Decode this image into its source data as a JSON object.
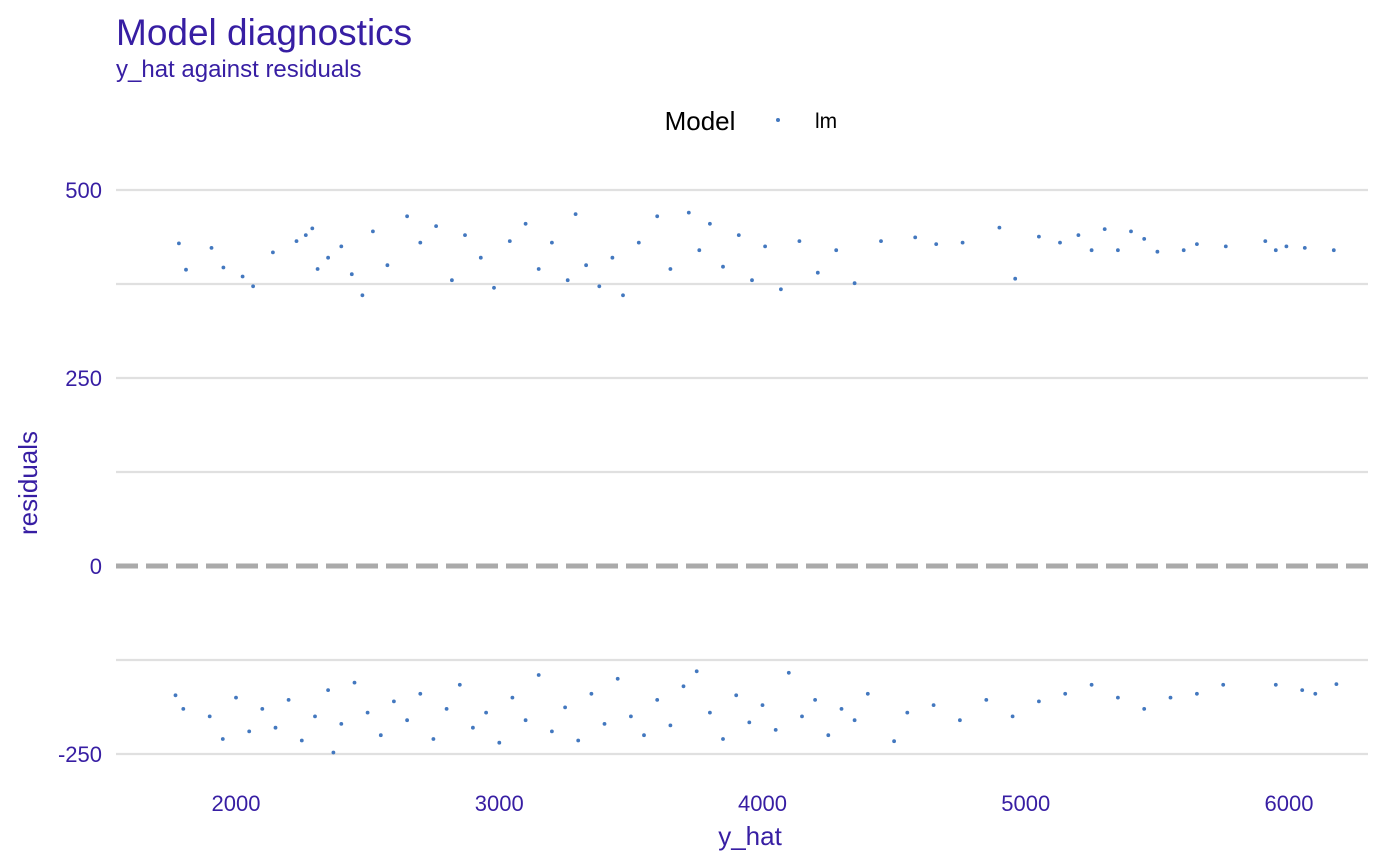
{
  "chart_data": {
    "type": "scatter",
    "title": "Model diagnostics",
    "subtitle": "y_hat against residuals",
    "xlabel": "y_hat",
    "ylabel": "residuals",
    "xlim": [
      1600,
      6350
    ],
    "ylim": [
      -270,
      530
    ],
    "x_ticks": [
      2000,
      3000,
      4000,
      5000,
      6000
    ],
    "y_ticks": [
      -250,
      0,
      250,
      500
    ],
    "y_minor_grid": [
      -125,
      125,
      375
    ],
    "grid": true,
    "legend": {
      "title": "Model",
      "position": "top",
      "entries": [
        {
          "label": "lm",
          "color": "#4378bf"
        }
      ]
    },
    "reference_line": {
      "y": 0,
      "style": "dashed",
      "color": "#aaaaaa"
    },
    "series": [
      {
        "name": "lm",
        "color": "#4378bf",
        "points": [
          [
            1783,
            429
          ],
          [
            1810,
            394
          ],
          [
            1907,
            423
          ],
          [
            1952,
            397
          ],
          [
            2025,
            385
          ],
          [
            2065,
            372
          ],
          [
            2140,
            417
          ],
          [
            2230,
            432
          ],
          [
            2265,
            440
          ],
          [
            2290,
            449
          ],
          [
            2310,
            395
          ],
          [
            2350,
            410
          ],
          [
            2400,
            425
          ],
          [
            2440,
            388
          ],
          [
            2480,
            360
          ],
          [
            2520,
            445
          ],
          [
            2575,
            400
          ],
          [
            2650,
            465
          ],
          [
            2700,
            430
          ],
          [
            2760,
            452
          ],
          [
            2820,
            380
          ],
          [
            2870,
            440
          ],
          [
            2930,
            410
          ],
          [
            2980,
            370
          ],
          [
            3040,
            432
          ],
          [
            3100,
            455
          ],
          [
            3150,
            395
          ],
          [
            3200,
            430
          ],
          [
            3260,
            380
          ],
          [
            3290,
            468
          ],
          [
            3330,
            400
          ],
          [
            3380,
            372
          ],
          [
            3430,
            410
          ],
          [
            3470,
            360
          ],
          [
            3530,
            430
          ],
          [
            3600,
            465
          ],
          [
            3650,
            395
          ],
          [
            3720,
            470
          ],
          [
            3760,
            420
          ],
          [
            3800,
            455
          ],
          [
            3850,
            398
          ],
          [
            3910,
            440
          ],
          [
            3960,
            380
          ],
          [
            4010,
            425
          ],
          [
            4070,
            368
          ],
          [
            4140,
            432
          ],
          [
            4210,
            390
          ],
          [
            4280,
            420
          ],
          [
            4350,
            376
          ],
          [
            4450,
            432
          ],
          [
            4580,
            437
          ],
          [
            4660,
            428
          ],
          [
            4760,
            430
          ],
          [
            4900,
            450
          ],
          [
            4960,
            382
          ],
          [
            5050,
            438
          ],
          [
            5130,
            430
          ],
          [
            5200,
            440
          ],
          [
            5250,
            420
          ],
          [
            5300,
            448
          ],
          [
            5350,
            420
          ],
          [
            5400,
            445
          ],
          [
            5450,
            435
          ],
          [
            5500,
            418
          ],
          [
            5600,
            420
          ],
          [
            5650,
            428
          ],
          [
            5760,
            425
          ],
          [
            5910,
            432
          ],
          [
            5950,
            420
          ],
          [
            5990,
            425
          ],
          [
            6060,
            423
          ],
          [
            6170,
            420
          ],
          [
            1770,
            -172
          ],
          [
            1800,
            -190
          ],
          [
            1900,
            -200
          ],
          [
            1950,
            -230
          ],
          [
            2000,
            -175
          ],
          [
            2050,
            -220
          ],
          [
            2100,
            -190
          ],
          [
            2150,
            -215
          ],
          [
            2200,
            -178
          ],
          [
            2250,
            -232
          ],
          [
            2300,
            -200
          ],
          [
            2350,
            -165
          ],
          [
            2370,
            -248
          ],
          [
            2400,
            -210
          ],
          [
            2450,
            -155
          ],
          [
            2500,
            -195
          ],
          [
            2550,
            -225
          ],
          [
            2600,
            -180
          ],
          [
            2650,
            -205
          ],
          [
            2700,
            -170
          ],
          [
            2750,
            -230
          ],
          [
            2800,
            -190
          ],
          [
            2850,
            -158
          ],
          [
            2900,
            -215
          ],
          [
            2950,
            -195
          ],
          [
            3000,
            -235
          ],
          [
            3050,
            -175
          ],
          [
            3100,
            -205
          ],
          [
            3150,
            -145
          ],
          [
            3200,
            -220
          ],
          [
            3250,
            -188
          ],
          [
            3300,
            -232
          ],
          [
            3350,
            -170
          ],
          [
            3400,
            -210
          ],
          [
            3450,
            -150
          ],
          [
            3500,
            -200
          ],
          [
            3550,
            -225
          ],
          [
            3600,
            -178
          ],
          [
            3650,
            -212
          ],
          [
            3700,
            -160
          ],
          [
            3750,
            -140
          ],
          [
            3800,
            -195
          ],
          [
            3850,
            -230
          ],
          [
            3900,
            -172
          ],
          [
            3950,
            -208
          ],
          [
            4000,
            -185
          ],
          [
            4050,
            -218
          ],
          [
            4100,
            -142
          ],
          [
            4150,
            -200
          ],
          [
            4200,
            -178
          ],
          [
            4250,
            -225
          ],
          [
            4300,
            -190
          ],
          [
            4350,
            -205
          ],
          [
            4400,
            -170
          ],
          [
            4500,
            -233
          ],
          [
            4550,
            -195
          ],
          [
            4650,
            -185
          ],
          [
            4750,
            -205
          ],
          [
            4850,
            -178
          ],
          [
            4950,
            -200
          ],
          [
            5050,
            -180
          ],
          [
            5150,
            -170
          ],
          [
            5250,
            -158
          ],
          [
            5350,
            -175
          ],
          [
            5450,
            -190
          ],
          [
            5550,
            -175
          ],
          [
            5650,
            -170
          ],
          [
            5750,
            -158
          ],
          [
            5950,
            -158
          ],
          [
            6050,
            -165
          ],
          [
            6100,
            -170
          ],
          [
            6180,
            -157
          ]
        ]
      }
    ]
  }
}
